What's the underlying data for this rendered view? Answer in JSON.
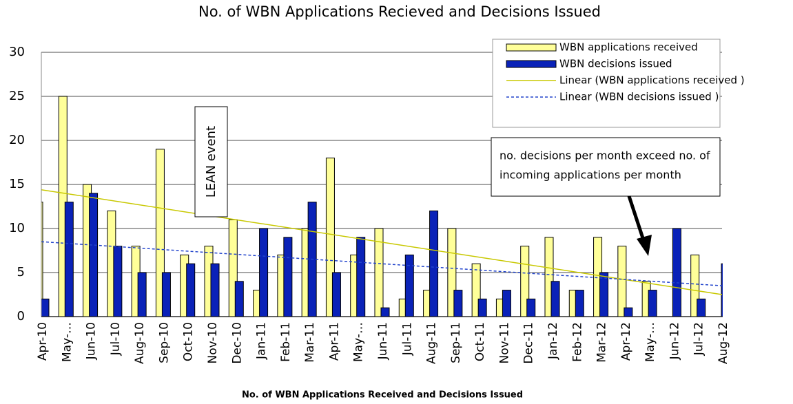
{
  "chart_data": {
    "type": "bar",
    "title": "No. of WBN Applications Recieved and Decisions Issued",
    "x_label": "No. of WBN Applications Received and Decisions Issued",
    "categories": [
      "Apr-10",
      "May-…",
      "Jun-10",
      "Jul-10",
      "Aug-10",
      "Sep-10",
      "Oct-10",
      "Nov-10",
      "Dec-10",
      "Jan-11",
      "Feb-11",
      "Mar-11",
      "Apr-11",
      "May-…",
      "Jun-11",
      "Jul-11",
      "Aug-11",
      "Sep-11",
      "Oct-11",
      "Nov-11",
      "Dec-11",
      "Jan-12",
      "Feb-12",
      "Mar-12",
      "Apr-12",
      "May-…",
      "Jun-12",
      "Jul-12",
      "Aug-12"
    ],
    "series": [
      {
        "name": "WBN applications received",
        "color": "#ffff99",
        "values": [
          13,
          25,
          15,
          12,
          8,
          19,
          7,
          8,
          11,
          3,
          7,
          10,
          18,
          7,
          10,
          2,
          3,
          10,
          6,
          2,
          8,
          9,
          3,
          9,
          8,
          4,
          null,
          7,
          null
        ]
      },
      {
        "name": "WBN decisions issued",
        "color": "#0a22b8",
        "values": [
          2,
          13,
          14,
          8,
          5,
          5,
          6,
          6,
          4,
          10,
          9,
          13,
          5,
          9,
          1,
          7,
          12,
          3,
          2,
          3,
          2,
          4,
          3,
          5,
          1,
          3,
          10,
          2,
          6
        ]
      }
    ],
    "trendlines": [
      {
        "name": "Linear (WBN applications received )",
        "color": "#c8c800",
        "dashed": false,
        "start": 14.4,
        "end": 2.5
      },
      {
        "name": "Linear (WBN decisions issued )",
        "color": "#2244cc",
        "dashed": true,
        "start": 8.5,
        "end": 3.5
      }
    ],
    "ylim": [
      0,
      30
    ],
    "yticks": [
      0,
      5,
      10,
      15,
      20,
      25,
      30
    ],
    "grid": true,
    "annotations": [
      "LEAN event",
      "no. decisions per month exceed no. of",
      "incoming applications per month"
    ]
  }
}
